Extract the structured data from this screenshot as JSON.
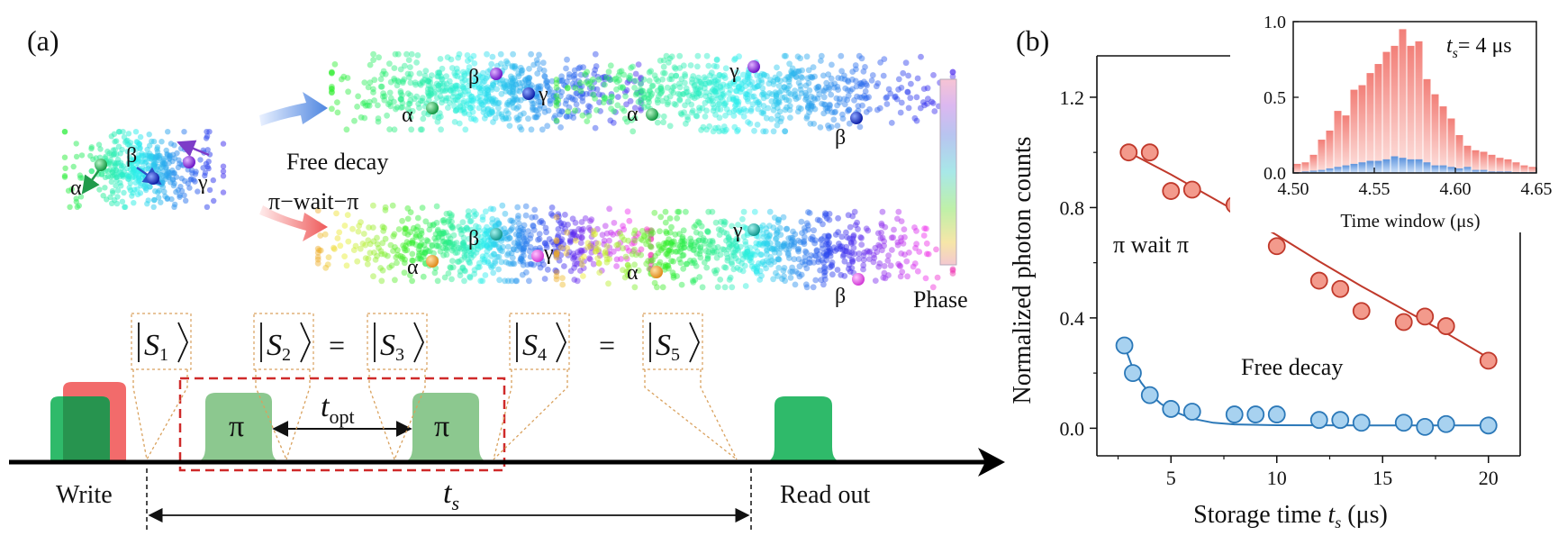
{
  "panel_a": {
    "label": "(a)",
    "particles": {
      "alpha": "α",
      "beta": "β",
      "gamma": "γ"
    },
    "legend": {
      "free_decay": "Free decay",
      "pi_wait_pi": "π−wait−π"
    },
    "colorbar_label": "Phase",
    "states": [
      "S",
      "S",
      "S",
      "S",
      "S"
    ],
    "state_subscripts": [
      "1",
      "2",
      "3",
      "4",
      "5"
    ],
    "equals": "=",
    "pulses": {
      "pi": "π",
      "t_opt": "t",
      "t_opt_sub": "opt"
    },
    "timeline": {
      "write": "Write",
      "read": "Read out",
      "ts": "t",
      "ts_sub": "s"
    },
    "colors": {
      "write_green": "#2fba6a",
      "write_red": "#f26b6b",
      "pi_pulse": "#8cc88f",
      "box": "#cf2a2a"
    }
  },
  "panel_b": {
    "label": "(b)",
    "chart_data": [
      {
        "type": "scatter",
        "xlabel": "Storage time",
        "xlabel_var": "t",
        "xlabel_sub": "s",
        "xlabel_unit": " (μs)",
        "ylabel": "Normalized photon counts",
        "xlim": [
          1.5,
          21.5
        ],
        "ylim": [
          -0.1,
          1.35
        ],
        "xticks": [
          5,
          10,
          15,
          20
        ],
        "yticks": [
          0.0,
          0.4,
          0.8,
          1.2
        ],
        "ytick_labels": [
          "0.0",
          "0.4",
          "0.8",
          "1.2"
        ],
        "series": [
          {
            "name": "π wait π",
            "color": "#c0392b",
            "fill": "#f39a8c",
            "x": [
              3,
              4,
              5,
              6,
              8,
              9,
              10,
              12,
              13,
              14,
              16,
              17,
              18,
              20
            ],
            "y": [
              1.0,
              1.0,
              0.86,
              0.865,
              0.81,
              0.785,
              0.66,
              0.535,
              0.505,
              0.425,
              0.385,
              0.405,
              0.37,
              0.245
            ],
            "fit": [
              [
                3,
                1.0
              ],
              [
                5,
                0.92
              ],
              [
                8,
                0.79
              ],
              [
                10,
                0.7
              ],
              [
                12,
                0.605
              ],
              [
                14,
                0.515
              ],
              [
                16,
                0.43
              ],
              [
                18,
                0.345
              ],
              [
                20,
                0.255
              ]
            ]
          },
          {
            "name": "Free decay",
            "color": "#2b78b8",
            "fill": "#a8d2f0",
            "x": [
              2.8,
              3.2,
              4,
              5,
              6,
              8,
              9,
              10,
              12,
              13,
              14,
              16,
              17,
              18,
              20
            ],
            "y": [
              0.3,
              0.2,
              0.12,
              0.07,
              0.06,
              0.05,
              0.05,
              0.05,
              0.03,
              0.03,
              0.02,
              0.02,
              0.005,
              0.015,
              0.01
            ],
            "fit": [
              [
                2.8,
                0.3
              ],
              [
                3.2,
                0.215
              ],
              [
                3.6,
                0.165
              ],
              [
                4,
                0.125
              ],
              [
                4.5,
                0.09
              ],
              [
                5,
                0.065
              ],
              [
                6,
                0.035
              ],
              [
                7,
                0.02
              ],
              [
                8,
                0.014
              ],
              [
                10,
                0.011
              ],
              [
                14,
                0.01
              ],
              [
                20,
                0.01
              ]
            ]
          }
        ]
      },
      {
        "type": "bar",
        "title": "t",
        "title_sub": "s",
        "title_tail": "= 4 μs",
        "xlabel": "Time window (μs)",
        "xlim": [
          4.5,
          4.65
        ],
        "ylim": [
          0,
          1.0
        ],
        "xticks": [
          4.5,
          4.55,
          4.6,
          4.65
        ],
        "xtick_labels": [
          "4.50",
          "4.55",
          "4.60",
          "4.65"
        ],
        "yticks": [
          0.0,
          0.5,
          1.0
        ],
        "ytick_labels": [
          "0.0",
          "0.5",
          "1.0"
        ],
        "bin_start": 4.5,
        "bin_width": 0.005,
        "series": [
          {
            "name": "π wait π",
            "color": "#f08a82",
            "values": [
              0.06,
              0.07,
              0.12,
              0.22,
              0.28,
              0.41,
              0.38,
              0.55,
              0.58,
              0.66,
              0.72,
              0.8,
              0.84,
              0.95,
              0.84,
              0.87,
              0.62,
              0.52,
              0.44,
              0.36,
              0.25,
              0.18,
              0.15,
              0.14,
              0.12,
              0.1,
              0.09,
              0.07,
              0.05,
              0.04
            ]
          },
          {
            "name": "Free decay",
            "color": "#6fa2df",
            "values": [
              0.005,
              0.01,
              0.015,
              0.02,
              0.03,
              0.04,
              0.05,
              0.06,
              0.07,
              0.08,
              0.08,
              0.09,
              0.11,
              0.1,
              0.09,
              0.09,
              0.07,
              0.05,
              0.05,
              0.04,
              0.03,
              0.04,
              0.02,
              0.02,
              0.01,
              0.01,
              0.01,
              0.005,
              0.005,
              0.005
            ]
          }
        ]
      }
    ],
    "annotations": {
      "pi_wait_pi": "π wait π",
      "free_decay": "Free decay"
    }
  }
}
